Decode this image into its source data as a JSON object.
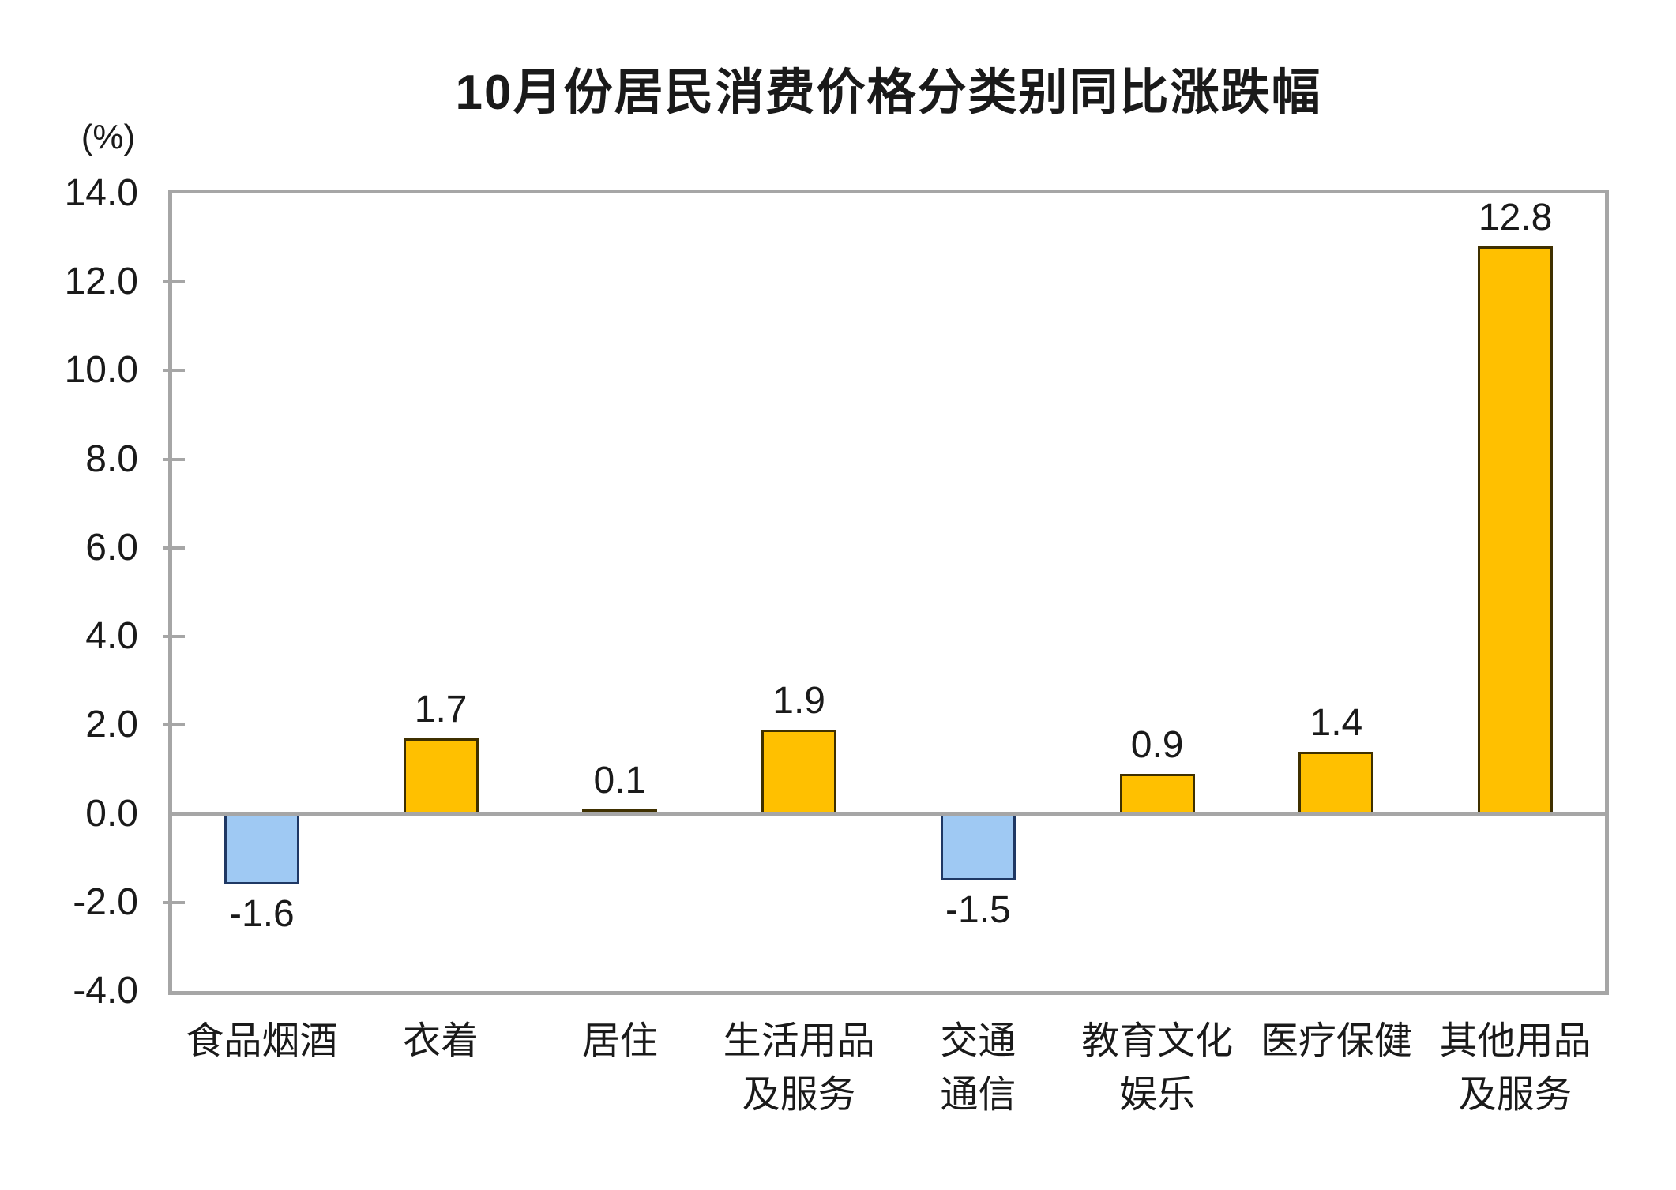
{
  "chart_data": {
    "type": "bar",
    "title": "10月份居民消费价格分类别同比涨跌幅",
    "unit_label": "(%)",
    "categories": [
      [
        "食品烟酒"
      ],
      [
        "衣着"
      ],
      [
        "居住"
      ],
      [
        "生活用品",
        "及服务"
      ],
      [
        "交通",
        "通信"
      ],
      [
        "教育文化",
        "娱乐"
      ],
      [
        "医疗保健"
      ],
      [
        "其他用品",
        "及服务"
      ]
    ],
    "values": [
      -1.6,
      1.7,
      0.1,
      1.9,
      -1.5,
      0.9,
      1.4,
      12.8
    ],
    "value_labels": [
      "-1.6",
      "1.7",
      "0.1",
      "1.9",
      "-1.5",
      "0.9",
      "1.4",
      "12.8"
    ],
    "y_ticks": [
      14.0,
      12.0,
      10.0,
      8.0,
      6.0,
      4.0,
      2.0,
      0.0,
      -2.0,
      -4.0
    ],
    "y_tick_labels": [
      "14.0",
      "12.0",
      "10.0",
      "8.0",
      "6.0",
      "4.0",
      "2.0",
      "0.0",
      "-2.0",
      "-4.0"
    ],
    "ylim": [
      -4.0,
      14.0
    ],
    "xlabel": "",
    "ylabel": "(%)",
    "legend": "none",
    "grid": "none",
    "colors": {
      "positive_fill": "#FFC000",
      "positive_border": "#3F3000",
      "negative_fill": "#9FC9F3",
      "negative_border": "#1F3864",
      "axis_gray": "#A6A6A6",
      "text": "#1A1A1A",
      "background": "#FFFFFF"
    }
  }
}
